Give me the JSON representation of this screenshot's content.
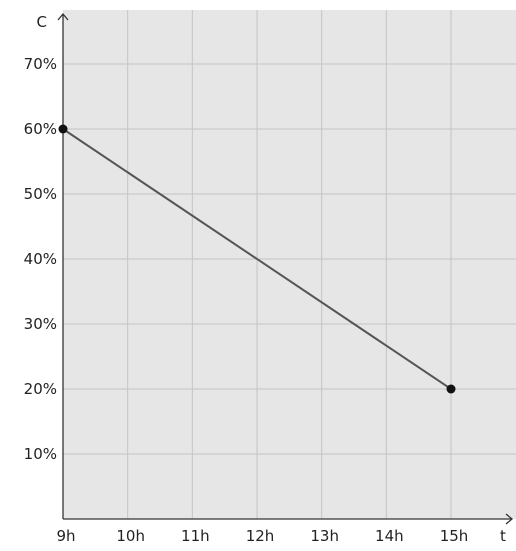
{
  "chart_data": {
    "type": "line",
    "title": "",
    "xlabel": "t",
    "ylabel": "C",
    "x_tick_labels": [
      "9h",
      "10h",
      "11h",
      "12h",
      "13h",
      "14h",
      "15h"
    ],
    "y_tick_labels": [
      "10%",
      "20%",
      "30%",
      "40%",
      "50%",
      "60%",
      "70%"
    ],
    "xlim": [
      9,
      16
    ],
    "ylim": [
      0,
      80
    ],
    "grid": true,
    "series": [
      {
        "x": [
          9,
          15
        ],
        "y": [
          60,
          20
        ],
        "markers": [
          true,
          true
        ]
      }
    ],
    "colors": {
      "plot_background": "#e6e6e6",
      "grid": "#c4c4c4",
      "axis": "#333333",
      "line": "#555555",
      "marker": "#111111"
    }
  }
}
